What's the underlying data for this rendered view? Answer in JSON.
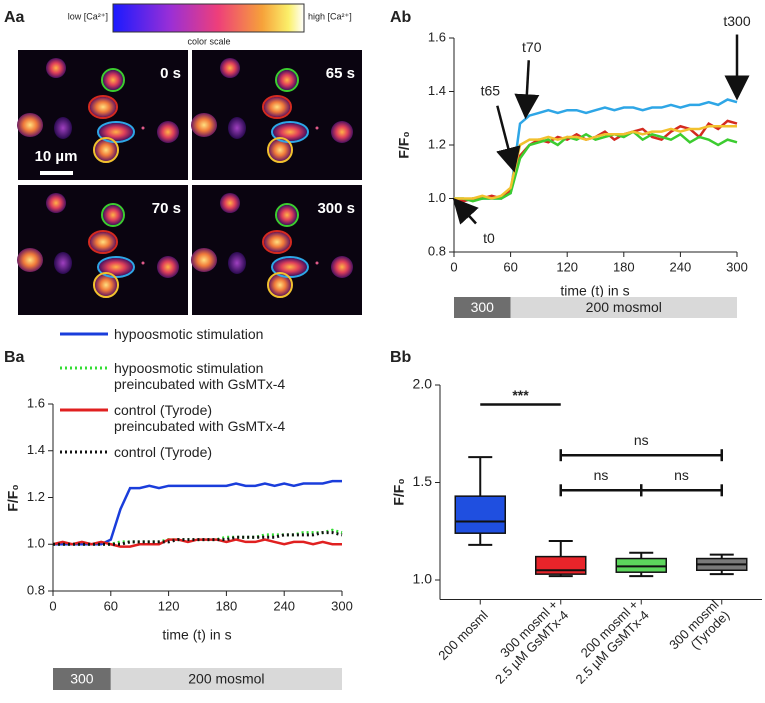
{
  "image_panel": {
    "panel": "Aa",
    "scale_low": "low [Ca²⁺]",
    "scale_high": "high [Ca²⁺]",
    "scale_title": "color scale",
    "timepoints": [
      "0 s",
      "65 s",
      "70 s",
      "300 s"
    ],
    "scale_bar": "10 µm"
  },
  "chart_data": [
    {
      "type": "line",
      "panel": "Ab",
      "xlabel": "time (t) in s",
      "ylabel": "F/F₀",
      "x": [
        0,
        10,
        20,
        30,
        40,
        50,
        60,
        70,
        80,
        90,
        100,
        110,
        120,
        130,
        140,
        150,
        160,
        170,
        180,
        190,
        200,
        210,
        220,
        230,
        240,
        250,
        260,
        270,
        280,
        290,
        300
      ],
      "xlim": [
        0,
        300
      ],
      "xticks": [
        0,
        60,
        120,
        180,
        240,
        300
      ],
      "ylim": [
        0.8,
        1.6
      ],
      "yticks": [
        0.8,
        {
          "value": 1,
          "label": "1.0"
        },
        1.2,
        1.4,
        1.6
      ],
      "series": [
        {
          "color": "#2ea6e6",
          "style": "solid",
          "values": [
            1.0,
            0.99,
            1.0,
            1.0,
            1.0,
            1.0,
            1.02,
            1.28,
            1.31,
            1.32,
            1.33,
            1.32,
            1.33,
            1.33,
            1.32,
            1.33,
            1.34,
            1.33,
            1.34,
            1.34,
            1.33,
            1.34,
            1.34,
            1.35,
            1.34,
            1.35,
            1.35,
            1.36,
            1.35,
            1.37,
            1.36
          ]
        },
        {
          "color": "#d42a20",
          "style": "solid",
          "values": [
            1.0,
            0.99,
            1.0,
            1.0,
            1.01,
            1.0,
            1.03,
            1.16,
            1.2,
            1.22,
            1.21,
            1.23,
            1.22,
            1.24,
            1.22,
            1.23,
            1.25,
            1.22,
            1.24,
            1.25,
            1.26,
            1.23,
            1.22,
            1.25,
            1.27,
            1.26,
            1.23,
            1.28,
            1.26,
            1.29,
            1.28
          ]
        },
        {
          "color": "#3ccc30",
          "style": "solid",
          "values": [
            1.0,
            1.0,
            0.99,
            1.0,
            1.0,
            1.0,
            1.02,
            1.15,
            1.2,
            1.21,
            1.22,
            1.2,
            1.23,
            1.22,
            1.24,
            1.22,
            1.23,
            1.24,
            1.23,
            1.25,
            1.22,
            1.24,
            1.23,
            1.22,
            1.24,
            1.21,
            1.23,
            1.22,
            1.2,
            1.22,
            1.21
          ]
        },
        {
          "color": "#f2c12e",
          "style": "solid",
          "values": [
            1.0,
            1.0,
            1.0,
            1.01,
            1.0,
            1.01,
            1.04,
            1.2,
            1.22,
            1.22,
            1.23,
            1.22,
            1.23,
            1.23,
            1.22,
            1.23,
            1.24,
            1.24,
            1.24,
            1.25,
            1.24,
            1.25,
            1.25,
            1.26,
            1.25,
            1.26,
            1.26,
            1.27,
            1.27,
            1.27,
            1.27
          ]
        }
      ],
      "annotations": [
        {
          "text": "t0",
          "x": 0,
          "y": 1.0
        },
        {
          "text": "t65",
          "x": 65,
          "y": 1.1
        },
        {
          "text": "t70",
          "x": 75,
          "y": 1.3
        },
        {
          "text": "t300",
          "x": 300,
          "y": 1.37
        }
      ],
      "osmolarity_bar": [
        {
          "label": "300",
          "from": 0,
          "to": 60,
          "color": "#6e6e6e"
        },
        {
          "label": "200 mosmol",
          "from": 60,
          "to": 300,
          "color": "#d9d9d9"
        }
      ]
    },
    {
      "type": "line",
      "panel": "Ba",
      "xlabel": "time (t) in s",
      "ylabel": "F/F₀",
      "x": [
        0,
        10,
        20,
        30,
        40,
        50,
        60,
        70,
        80,
        90,
        100,
        110,
        120,
        130,
        140,
        150,
        160,
        170,
        180,
        190,
        200,
        210,
        220,
        230,
        240,
        250,
        260,
        270,
        280,
        290,
        300
      ],
      "xlim": [
        0,
        300
      ],
      "xticks": [
        0,
        60,
        120,
        180,
        240,
        300
      ],
      "ylim": [
        0.8,
        1.6
      ],
      "yticks": [
        0.8,
        {
          "value": 1,
          "label": "1.0"
        },
        1.2,
        1.4,
        1.6
      ],
      "series": [
        {
          "name": "hypoosmotic stimulation",
          "color": "#1a3ddb",
          "style": "solid",
          "values": [
            1.0,
            1.0,
            1.0,
            1.0,
            1.0,
            1.0,
            1.02,
            1.15,
            1.24,
            1.24,
            1.25,
            1.24,
            1.25,
            1.25,
            1.25,
            1.25,
            1.25,
            1.25,
            1.25,
            1.26,
            1.25,
            1.25,
            1.26,
            1.25,
            1.26,
            1.25,
            1.26,
            1.26,
            1.26,
            1.27,
            1.27
          ]
        },
        {
          "name": "hypoosmotic stimulation\npreincubated with GsMTx-4",
          "color": "#33dd33",
          "style": "dotted",
          "values": [
            1.0,
            1.0,
            1.0,
            1.0,
            1.0,
            1.0,
            1.0,
            1.01,
            1.01,
            1.01,
            1.01,
            1.01,
            1.02,
            1.02,
            1.02,
            1.02,
            1.02,
            1.02,
            1.03,
            1.03,
            1.03,
            1.03,
            1.04,
            1.04,
            1.04,
            1.04,
            1.05,
            1.05,
            1.05,
            1.06,
            1.05
          ]
        },
        {
          "name": "control (Tyrode)\npreincubated with GsMTx-4",
          "color": "#e02020",
          "style": "solid",
          "values": [
            1.0,
            1.01,
            1.0,
            1.01,
            1.0,
            1.01,
            1.0,
            0.99,
            0.99,
            1.0,
            1.0,
            1.0,
            1.02,
            1.02,
            1.01,
            1.02,
            1.02,
            1.02,
            1.01,
            1.02,
            1.01,
            1.01,
            1.02,
            1.01,
            1.0,
            1.01,
            1.01,
            1.0,
            1.01,
            1.0,
            1.0
          ]
        },
        {
          "name": "control (Tyrode)",
          "color": "#111111",
          "style": "dotted",
          "values": [
            1.0,
            1.0,
            1.0,
            1.0,
            1.0,
            1.0,
            1.0,
            1.0,
            1.01,
            1.01,
            1.01,
            1.01,
            1.01,
            1.02,
            1.02,
            1.02,
            1.02,
            1.02,
            1.02,
            1.03,
            1.03,
            1.03,
            1.03,
            1.03,
            1.04,
            1.04,
            1.04,
            1.04,
            1.05,
            1.05,
            1.04
          ]
        }
      ],
      "osmolarity_bar": [
        {
          "label": "300",
          "from": 0,
          "to": 60,
          "color": "#6e6e6e"
        },
        {
          "label": "200 mosmol",
          "from": 60,
          "to": 300,
          "color": "#d9d9d9"
        }
      ]
    },
    {
      "type": "box",
      "panel": "Bb",
      "ylabel": "F/F₀",
      "categories": [
        [
          "200 mosml"
        ],
        [
          "300 mosml +",
          "2.5 µM GsMTx-4"
        ],
        [
          "200 mosml +",
          "2.5 µM GsMTx-4"
        ],
        [
          "300 mosml",
          "(Tyrode)"
        ]
      ],
      "ylim": [
        0.9,
        2.0
      ],
      "yticks": [
        {
          "value": 1,
          "label": "1.0"
        },
        1.5,
        {
          "value": 2,
          "label": "2.0"
        }
      ],
      "boxes": [
        {
          "min": 1.18,
          "q1": 1.24,
          "median": 1.3,
          "q3": 1.43,
          "max": 1.63,
          "color": "#1f4fe0"
        },
        {
          "min": 1.02,
          "q1": 1.03,
          "median": 1.05,
          "q3": 1.12,
          "max": 1.2,
          "color": "#e8242a"
        },
        {
          "min": 1.02,
          "q1": 1.04,
          "median": 1.07,
          "q3": 1.11,
          "max": 1.14,
          "color": "#5cd65c"
        },
        {
          "min": 1.03,
          "q1": 1.05,
          "median": 1.08,
          "q3": 1.11,
          "max": 1.13,
          "color": "#7a7a7a"
        }
      ],
      "comparisons": [
        {
          "label": "***",
          "from": 0,
          "to": 1,
          "y": 1.9
        },
        {
          "label": "ns",
          "from": 1,
          "to": 3,
          "y": 1.64
        },
        {
          "label": "ns",
          "from": 1,
          "to": 2,
          "y": 1.46
        },
        {
          "label": "ns",
          "from": 2,
          "to": 3,
          "y": 1.46
        }
      ]
    }
  ]
}
